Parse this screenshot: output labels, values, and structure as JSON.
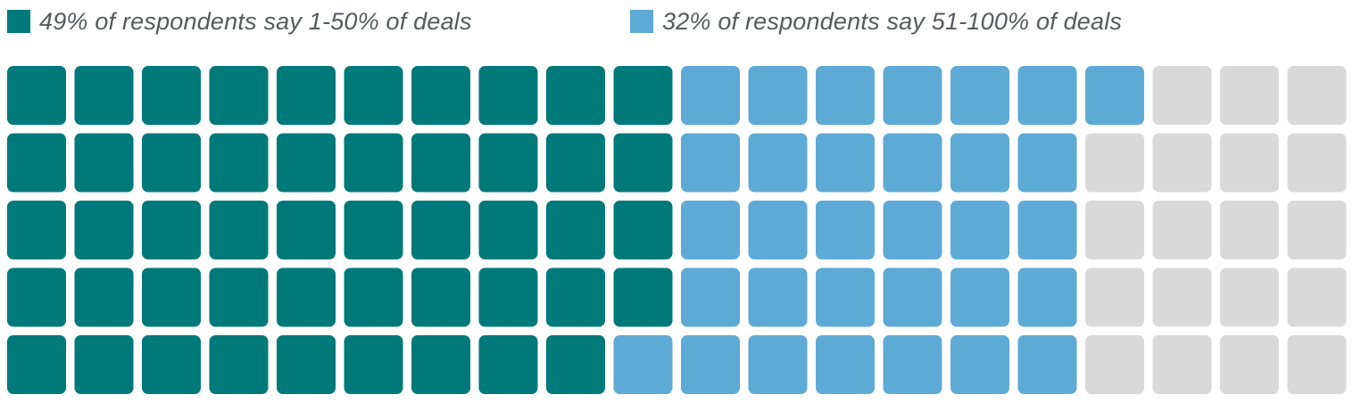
{
  "legend": [
    {
      "label": "49% of respondents say 1-50% of deals",
      "color": "#00797a"
    },
    {
      "label": "32% of respondents say 51-100% of deals",
      "color": "#5eaad6"
    }
  ],
  "chart_data": {
    "type": "waffle",
    "rows": 5,
    "columns": 20,
    "total_cells": 100,
    "fill_order": "column-major, top to bottom, left to right",
    "series": [
      {
        "name": "49% of respondents say 1-50% of deals",
        "value": 49,
        "color": "#00797a"
      },
      {
        "name": "32% of respondents say 51-100% of deals",
        "value": 32,
        "color": "#5eaad6"
      },
      {
        "value": 19,
        "color": "#d9d9d9"
      }
    ],
    "legend_position": "top-left"
  }
}
